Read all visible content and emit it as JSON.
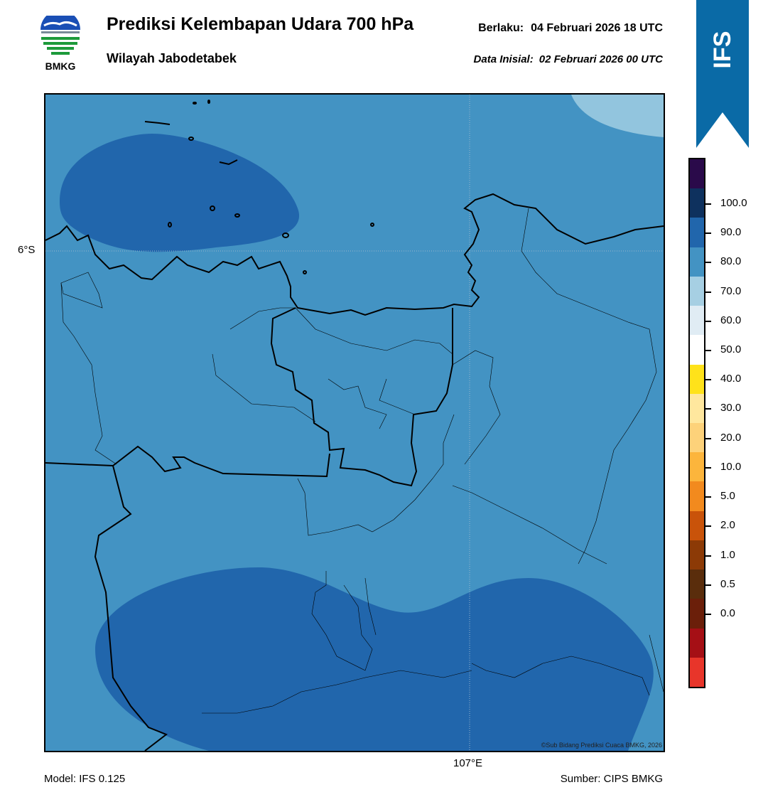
{
  "header": {
    "title": "Prediksi Kelembapan Udara 700 hPa",
    "region": "Wilayah Jabodetabek",
    "valid_label": "Berlaku:",
    "valid_time": "04 Februari 2026 18 UTC",
    "init_label": "Data Inisial:",
    "init_time": "02 Februari 2026 00 UTC"
  },
  "logo": {
    "icon": "bmkg-logo-icon",
    "text": "BMKG"
  },
  "badge": {
    "text": "IFS",
    "color": "#0a6aa6"
  },
  "map": {
    "lat_label": "6°S",
    "lon_label": "107°E",
    "credit": "©Sub Bidang Prediksi Cuaca BMKG, 2026",
    "colors": {
      "background": "#4393c3",
      "high": "#2166ac",
      "lighter": "#92c5de"
    }
  },
  "colorbar": {
    "labels": [
      "100.0",
      "90.0",
      "80.0",
      "70.0",
      "60.0",
      "50.0",
      "40.0",
      "30.0",
      "20.0",
      "10.0",
      "5.0",
      "2.0",
      "1.0",
      "0.5",
      "0.0"
    ],
    "colors": [
      "#e8352a",
      "#a50f15",
      "#6b1f0a",
      "#5a2d0c",
      "#8c3a06",
      "#c9530a",
      "#f28a1e",
      "#fcb53c",
      "#fdd27a",
      "#ffe79e",
      "#ffe21a",
      "#ffffff",
      "#e0ecf4",
      "#a6cfe3",
      "#4393c3",
      "#2166ac",
      "#0e315e",
      "#2a0a4a"
    ]
  },
  "footer": {
    "model": "Model: IFS 0.125",
    "source": "Sumber: CIPS BMKG"
  }
}
